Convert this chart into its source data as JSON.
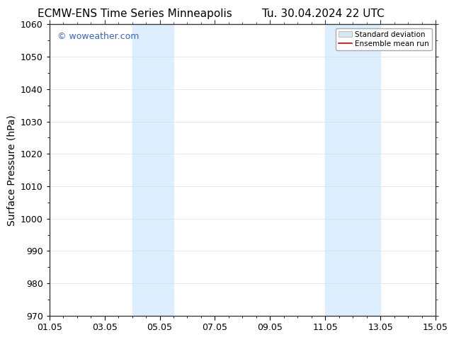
{
  "title_left": "ECMW-ENS Time Series Minneapolis",
  "title_right": "Tu. 30.04.2024 22 UTC",
  "ylabel": "Surface Pressure (hPa)",
  "ylim": [
    970,
    1060
  ],
  "yticks": [
    970,
    980,
    990,
    1000,
    1010,
    1020,
    1030,
    1040,
    1050,
    1060
  ],
  "xlim_start_day": 1,
  "xlim_end_day": 15,
  "xtick_labels": [
    "01.05",
    "03.05",
    "05.05",
    "07.05",
    "09.05",
    "11.05",
    "13.05",
    "15.05"
  ],
  "xtick_days": [
    1,
    3,
    5,
    7,
    9,
    11,
    13,
    15
  ],
  "shaded_regions": [
    {
      "x_start": 4.0,
      "x_end": 5.5,
      "color": "#ddeeff"
    },
    {
      "x_start": 11.0,
      "x_end": 13.0,
      "color": "#ddeeff"
    }
  ],
  "watermark_text": "© woweather.com",
  "watermark_color": "#3366cc",
  "legend_std_dev_color": "#d8e8f0",
  "legend_std_dev_edge": "#aaaaaa",
  "legend_mean_color": "#cc0000",
  "background_color": "#ffffff",
  "grid_color": "#dddddd",
  "title_fontsize": 11,
  "axis_label_fontsize": 10,
  "tick_fontsize": 9,
  "watermark_fontsize": 9
}
